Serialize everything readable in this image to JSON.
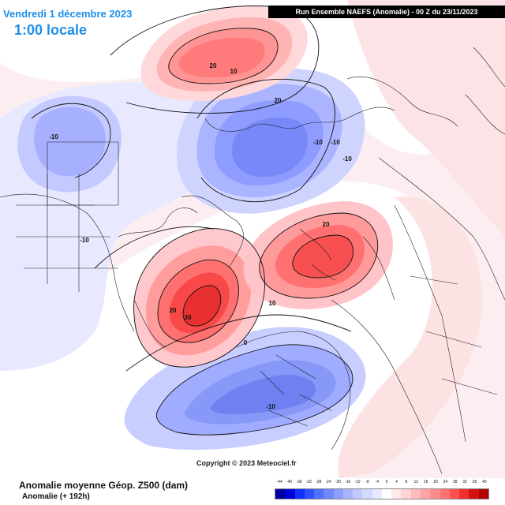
{
  "header": {
    "date": "Vendredi 1 décembre 2023",
    "local_time": "1:00 locale",
    "run_info": "Run Ensemble NAEFS  (Anomalie)  -  00 Z du 23/11/2023"
  },
  "map": {
    "contour_labels": [
      "20",
      "10",
      "20",
      "-10",
      "-10",
      "-10",
      "-10",
      "20",
      "-10",
      "20",
      "30",
      "10",
      "0",
      "-10"
    ]
  },
  "copyright": "Copyright © 2023 Meteociel.fr",
  "footer": {
    "title": "Anomalie moyenne Géop. Z500 (dam)",
    "subtitle": "Anomalie (+ 192h)"
  },
  "legend": {
    "labels": [
      "-44",
      "-40",
      "-36",
      "-32",
      "-28",
      "-24",
      "-20",
      "-16",
      "-12",
      "-8",
      "-4",
      "0",
      "4",
      "8",
      "12",
      "16",
      "20",
      "24",
      "28",
      "32",
      "36",
      "40"
    ],
    "colors": [
      "#0000a0",
      "#0000d8",
      "#1030ff",
      "#3050ff",
      "#5070ff",
      "#7088ff",
      "#8ea0ff",
      "#a8b4ff",
      "#c0c8ff",
      "#d4daff",
      "#e6e9ff",
      "#ffffff",
      "#ffe8e8",
      "#ffd4d4",
      "#ffbcbc",
      "#ffa4a4",
      "#ff8c8c",
      "#ff7070",
      "#ff5050",
      "#f03030",
      "#d81010",
      "#b00000"
    ]
  }
}
